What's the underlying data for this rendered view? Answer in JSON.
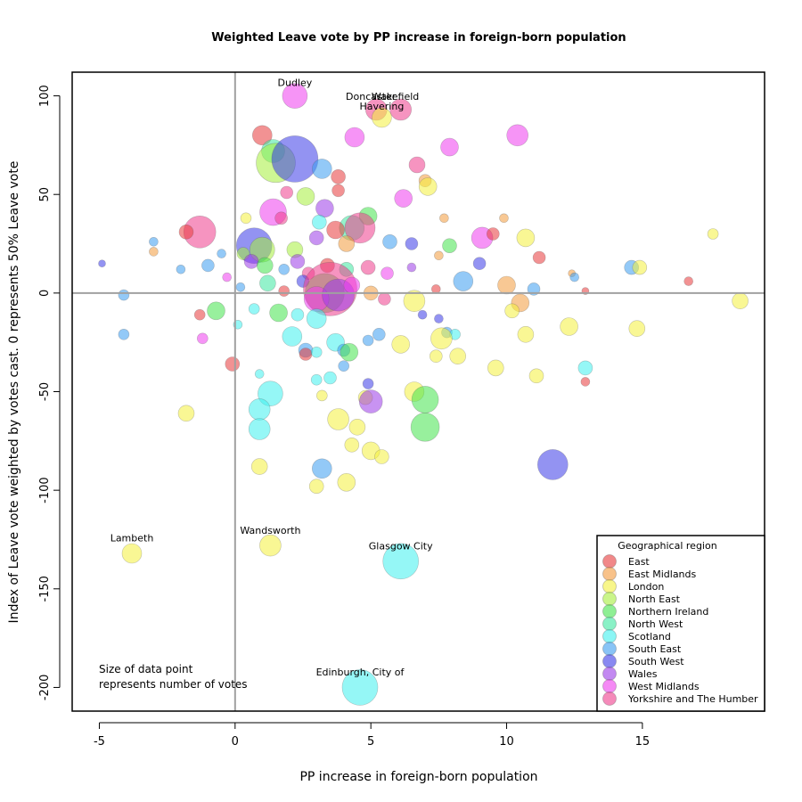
{
  "chart_data": {
    "type": "scatter",
    "title": "Weighted Leave vote by PP increase in foreign-born population",
    "xlabel": "PP increase in foreign-born population",
    "ylabel": "Index of Leave vote weighted by votes cast. 0 represents 50% Leave vote",
    "xlim": [
      -6.0,
      19.5
    ],
    "ylim": [
      -212,
      112
    ],
    "x_ticks": [
      -5,
      0,
      5,
      10,
      15
    ],
    "y_ticks": [
      -200,
      -150,
      -100,
      -50,
      0,
      50,
      100
    ],
    "reference_lines": {
      "x": 0,
      "y": 0
    },
    "note_lines": [
      "Size of data point",
      "represents number of votes"
    ],
    "legend": {
      "title": "Geographical region",
      "position": "bottom-right",
      "entries": [
        {
          "name": "East",
          "color": "#e8393a"
        },
        {
          "name": "East Midlands",
          "color": "#f39a3c"
        },
        {
          "name": "London",
          "color": "#f4f03c"
        },
        {
          "name": "North East",
          "color": "#a6ee3c"
        },
        {
          "name": "Northern Ireland",
          "color": "#44e44c"
        },
        {
          "name": "North West",
          "color": "#3ce8a0"
        },
        {
          "name": "Scotland",
          "color": "#3ef0ee"
        },
        {
          "name": "South East",
          "color": "#3a9cf0"
        },
        {
          "name": "South West",
          "color": "#3a3ae8"
        },
        {
          "name": "Wales",
          "color": "#9a3ae8"
        },
        {
          "name": "West Midlands",
          "color": "#ee3cee"
        },
        {
          "name": "Yorkshire and The Humber",
          "color": "#ee3c8c"
        }
      ]
    },
    "labels": [
      {
        "text": "Dudley",
        "x": 2.2,
        "y": 105
      },
      {
        "text": "Doncaster",
        "x": 5.0,
        "y": 98
      },
      {
        "text": "Wakefield",
        "x": 5.9,
        "y": 98
      },
      {
        "text": "Havering",
        "x": 5.4,
        "y": 93
      },
      {
        "text": "Lambeth",
        "x": -3.8,
        "y": -126
      },
      {
        "text": "Wandsworth",
        "x": 1.3,
        "y": -122
      },
      {
        "text": "Glasgow City",
        "x": 6.1,
        "y": -130
      },
      {
        "text": "Edinburgh, City of",
        "x": 4.6,
        "y": -194
      }
    ],
    "points": [
      {
        "x": 2.2,
        "y": 100,
        "s": 14,
        "r": 10
      },
      {
        "x": 5.2,
        "y": 93,
        "s": 12,
        "r": 11
      },
      {
        "x": 6.1,
        "y": 93,
        "s": 12,
        "r": 11
      },
      {
        "x": 5.4,
        "y": 89,
        "s": 11,
        "r": 2
      },
      {
        "x": 1.0,
        "y": 80,
        "s": 11,
        "r": 0
      },
      {
        "x": 4.4,
        "y": 79,
        "s": 11,
        "r": 10
      },
      {
        "x": 10.4,
        "y": 80,
        "s": 12,
        "r": 10
      },
      {
        "x": 7.9,
        "y": 74,
        "s": 10,
        "r": 10
      },
      {
        "x": 1.4,
        "y": 72,
        "s": 13,
        "r": 5
      },
      {
        "x": 1.5,
        "y": 66,
        "s": 22,
        "r": 3
      },
      {
        "x": 2.2,
        "y": 68,
        "s": 26,
        "r": 8
      },
      {
        "x": 3.2,
        "y": 63,
        "s": 11,
        "r": 7
      },
      {
        "x": 6.7,
        "y": 65,
        "s": 9,
        "r": 11
      },
      {
        "x": 3.8,
        "y": 59,
        "s": 8,
        "r": 0
      },
      {
        "x": 7.0,
        "y": 57,
        "s": 7,
        "r": 1
      },
      {
        "x": 7.1,
        "y": 54,
        "s": 10,
        "r": 2
      },
      {
        "x": 3.8,
        "y": 52,
        "s": 7,
        "r": 0
      },
      {
        "x": 1.9,
        "y": 51,
        "s": 7,
        "r": 11
      },
      {
        "x": 2.6,
        "y": 49,
        "s": 10,
        "r": 3
      },
      {
        "x": 6.2,
        "y": 48,
        "s": 10,
        "r": 10
      },
      {
        "x": 1.4,
        "y": 41,
        "s": 15,
        "r": 10
      },
      {
        "x": 3.3,
        "y": 43,
        "s": 10,
        "r": 9
      },
      {
        "x": 4.9,
        "y": 39,
        "s": 10,
        "r": 4
      },
      {
        "x": 1.7,
        "y": 38,
        "s": 7,
        "r": 11
      },
      {
        "x": 0.4,
        "y": 38,
        "s": 6,
        "r": 2
      },
      {
        "x": 7.7,
        "y": 38,
        "s": 5,
        "r": 1
      },
      {
        "x": 9.9,
        "y": 38,
        "s": 5,
        "r": 1
      },
      {
        "x": 3.1,
        "y": 36,
        "s": 8,
        "r": 6
      },
      {
        "x": 4.3,
        "y": 33,
        "s": 14,
        "r": 5
      },
      {
        "x": 4.6,
        "y": 33,
        "s": 17,
        "r": 11
      },
      {
        "x": 3.7,
        "y": 32,
        "s": 10,
        "r": 0
      },
      {
        "x": -1.3,
        "y": 31,
        "s": 18,
        "r": 11
      },
      {
        "x": -1.8,
        "y": 31,
        "s": 8,
        "r": 0
      },
      {
        "x": 0.7,
        "y": 24,
        "s": 20,
        "r": 8
      },
      {
        "x": 1.0,
        "y": 22,
        "s": 14,
        "r": 3
      },
      {
        "x": 2.2,
        "y": 22,
        "s": 9,
        "r": 3
      },
      {
        "x": 3.0,
        "y": 28,
        "s": 8,
        "r": 9
      },
      {
        "x": 4.1,
        "y": 25,
        "s": 9,
        "r": 1
      },
      {
        "x": 5.7,
        "y": 26,
        "s": 8,
        "r": 7
      },
      {
        "x": 6.5,
        "y": 25,
        "s": 7,
        "r": 8
      },
      {
        "x": 7.9,
        "y": 24,
        "s": 8,
        "r": 4
      },
      {
        "x": 9.1,
        "y": 28,
        "s": 12,
        "r": 10
      },
      {
        "x": 9.5,
        "y": 30,
        "s": 7,
        "r": 0
      },
      {
        "x": 10.7,
        "y": 28,
        "s": 10,
        "r": 2
      },
      {
        "x": 11.2,
        "y": 18,
        "s": 7,
        "r": 0
      },
      {
        "x": -3.0,
        "y": 21,
        "s": 5,
        "r": 1
      },
      {
        "x": -3.0,
        "y": 26,
        "s": 5,
        "r": 7
      },
      {
        "x": -4.9,
        "y": 15,
        "s": 4,
        "r": 8
      },
      {
        "x": -2.0,
        "y": 12,
        "s": 5,
        "r": 7
      },
      {
        "x": -1.0,
        "y": 14,
        "s": 7,
        "r": 7
      },
      {
        "x": -0.5,
        "y": 20,
        "s": 5,
        "r": 7
      },
      {
        "x": 0.3,
        "y": 20,
        "s": 7,
        "r": 3
      },
      {
        "x": 0.6,
        "y": 16,
        "s": 8,
        "r": 9
      },
      {
        "x": 1.1,
        "y": 14,
        "s": 9,
        "r": 4
      },
      {
        "x": 1.8,
        "y": 12,
        "s": 6,
        "r": 7
      },
      {
        "x": 2.3,
        "y": 16,
        "s": 8,
        "r": 9
      },
      {
        "x": 2.7,
        "y": 10,
        "s": 7,
        "r": 11
      },
      {
        "x": 3.4,
        "y": 14,
        "s": 8,
        "r": 0
      },
      {
        "x": 4.1,
        "y": 12,
        "s": 8,
        "r": 5
      },
      {
        "x": 4.9,
        "y": 13,
        "s": 8,
        "r": 11
      },
      {
        "x": 5.6,
        "y": 10,
        "s": 7,
        "r": 10
      },
      {
        "x": 6.5,
        "y": 13,
        "s": 5,
        "r": 9
      },
      {
        "x": 7.5,
        "y": 19,
        "s": 5,
        "r": 1
      },
      {
        "x": 8.4,
        "y": 6,
        "s": 11,
        "r": 7
      },
      {
        "x": 9.0,
        "y": 15,
        "s": 7,
        "r": 8
      },
      {
        "x": 10.0,
        "y": 4,
        "s": 10,
        "r": 1
      },
      {
        "x": 12.4,
        "y": 10,
        "s": 4,
        "r": 1
      },
      {
        "x": 12.5,
        "y": 8,
        "s": 5,
        "r": 7
      },
      {
        "x": 14.6,
        "y": 13,
        "s": 8,
        "r": 7
      },
      {
        "x": 14.9,
        "y": 13,
        "s": 8,
        "r": 2
      },
      {
        "x": 16.7,
        "y": 6,
        "s": 5,
        "r": 0
      },
      {
        "x": 17.6,
        "y": 30,
        "s": 6,
        "r": 2
      },
      {
        "x": 12.9,
        "y": 1,
        "s": 4,
        "r": 0
      },
      {
        "x": 11.0,
        "y": 2,
        "s": 7,
        "r": 7
      },
      {
        "x": -0.3,
        "y": 8,
        "s": 5,
        "r": 10
      },
      {
        "x": 0.2,
        "y": 3,
        "s": 5,
        "r": 7
      },
      {
        "x": 1.2,
        "y": 5,
        "s": 9,
        "r": 5
      },
      {
        "x": 1.8,
        "y": 1,
        "s": 6,
        "r": 0
      },
      {
        "x": 2.5,
        "y": 6,
        "s": 7,
        "r": 8
      },
      {
        "x": 3.3,
        "y": 0,
        "s": 22,
        "r": 4
      },
      {
        "x": 3.5,
        "y": 2,
        "s": 30,
        "r": 11
      },
      {
        "x": 3.0,
        "y": -3,
        "s": 14,
        "r": 10
      },
      {
        "x": 3.8,
        "y": -1,
        "s": 18,
        "r": 9
      },
      {
        "x": 4.3,
        "y": 4,
        "s": 9,
        "r": 10
      },
      {
        "x": 5.0,
        "y": 0,
        "s": 8,
        "r": 1
      },
      {
        "x": 5.5,
        "y": -3,
        "s": 7,
        "r": 11
      },
      {
        "x": 6.6,
        "y": -4,
        "s": 12,
        "r": 2
      },
      {
        "x": 7.4,
        "y": 2,
        "s": 5,
        "r": 0
      },
      {
        "x": 10.5,
        "y": -5,
        "s": 10,
        "r": 1
      },
      {
        "x": 10.2,
        "y": -9,
        "s": 8,
        "r": 2
      },
      {
        "x": 18.6,
        "y": -4,
        "s": 9,
        "r": 2
      },
      {
        "x": -4.1,
        "y": -1,
        "s": 6,
        "r": 7
      },
      {
        "x": -4.1,
        "y": -21,
        "s": 6,
        "r": 7
      },
      {
        "x": -1.3,
        "y": -11,
        "s": 6,
        "r": 0
      },
      {
        "x": -0.7,
        "y": -9,
        "s": 10,
        "r": 4
      },
      {
        "x": -1.2,
        "y": -23,
        "s": 6,
        "r": 10
      },
      {
        "x": 0.7,
        "y": -8,
        "s": 6,
        "r": 6
      },
      {
        "x": 1.6,
        "y": -10,
        "s": 10,
        "r": 4
      },
      {
        "x": 2.3,
        "y": -11,
        "s": 7,
        "r": 6
      },
      {
        "x": 3.0,
        "y": -13,
        "s": 11,
        "r": 6
      },
      {
        "x": 2.1,
        "y": -22,
        "s": 11,
        "r": 6
      },
      {
        "x": 2.6,
        "y": -29,
        "s": 8,
        "r": 7
      },
      {
        "x": 2.6,
        "y": -31,
        "s": 7,
        "r": 0
      },
      {
        "x": 3.7,
        "y": -25,
        "s": 10,
        "r": 6
      },
      {
        "x": 4.0,
        "y": -29,
        "s": 7,
        "r": 7
      },
      {
        "x": 4.2,
        "y": -30,
        "s": 10,
        "r": 4
      },
      {
        "x": 4.9,
        "y": -24,
        "s": 6,
        "r": 7
      },
      {
        "x": 5.3,
        "y": -21,
        "s": 7,
        "r": 7
      },
      {
        "x": 6.1,
        "y": -26,
        "s": 10,
        "r": 2
      },
      {
        "x": 6.9,
        "y": -11,
        "s": 5,
        "r": 8
      },
      {
        "x": 7.5,
        "y": -13,
        "s": 5,
        "r": 8
      },
      {
        "x": 7.8,
        "y": -20,
        "s": 6,
        "r": 7
      },
      {
        "x": 8.1,
        "y": -21,
        "s": 6,
        "r": 6
      },
      {
        "x": 7.6,
        "y": -23,
        "s": 12,
        "r": 2
      },
      {
        "x": 7.4,
        "y": -32,
        "s": 7,
        "r": 2
      },
      {
        "x": 8.2,
        "y": -32,
        "s": 9,
        "r": 2
      },
      {
        "x": 10.7,
        "y": -21,
        "s": 9,
        "r": 2
      },
      {
        "x": 12.3,
        "y": -17,
        "s": 10,
        "r": 2
      },
      {
        "x": 14.8,
        "y": -18,
        "s": 9,
        "r": 2
      },
      {
        "x": 9.6,
        "y": -38,
        "s": 9,
        "r": 2
      },
      {
        "x": 11.1,
        "y": -42,
        "s": 8,
        "r": 2
      },
      {
        "x": 12.9,
        "y": -38,
        "s": 8,
        "r": 6
      },
      {
        "x": 12.9,
        "y": -45,
        "s": 5,
        "r": 0
      },
      {
        "x": -0.1,
        "y": -36,
        "s": 8,
        "r": 0
      },
      {
        "x": 0.1,
        "y": -16,
        "s": 5,
        "r": 6
      },
      {
        "x": 0.9,
        "y": -41,
        "s": 5,
        "r": 6
      },
      {
        "x": 1.3,
        "y": -51,
        "s": 14,
        "r": 6
      },
      {
        "x": 0.9,
        "y": -59,
        "s": 12,
        "r": 6
      },
      {
        "x": 0.9,
        "y": -69,
        "s": 12,
        "r": 6
      },
      {
        "x": 0.9,
        "y": -88,
        "s": 9,
        "r": 2
      },
      {
        "x": -1.8,
        "y": -61,
        "s": 9,
        "r": 2
      },
      {
        "x": 3.0,
        "y": -30,
        "s": 6,
        "r": 6
      },
      {
        "x": 3.0,
        "y": -44,
        "s": 6,
        "r": 6
      },
      {
        "x": 3.2,
        "y": -52,
        "s": 6,
        "r": 2
      },
      {
        "x": 3.5,
        "y": -43,
        "s": 7,
        "r": 6
      },
      {
        "x": 4.0,
        "y": -37,
        "s": 6,
        "r": 7
      },
      {
        "x": 4.9,
        "y": -46,
        "s": 6,
        "r": 8
      },
      {
        "x": 4.8,
        "y": -53,
        "s": 8,
        "r": 2
      },
      {
        "x": 5.0,
        "y": -55,
        "s": 13,
        "r": 9
      },
      {
        "x": 6.6,
        "y": -50,
        "s": 11,
        "r": 2
      },
      {
        "x": 7.0,
        "y": -54,
        "s": 15,
        "r": 4
      },
      {
        "x": 7.0,
        "y": -68,
        "s": 16,
        "r": 4
      },
      {
        "x": 3.8,
        "y": -64,
        "s": 12,
        "r": 2
      },
      {
        "x": 4.5,
        "y": -68,
        "s": 9,
        "r": 2
      },
      {
        "x": 4.3,
        "y": -77,
        "s": 8,
        "r": 2
      },
      {
        "x": 5.0,
        "y": -80,
        "s": 10,
        "r": 2
      },
      {
        "x": 5.4,
        "y": -83,
        "s": 8,
        "r": 2
      },
      {
        "x": 3.2,
        "y": -89,
        "s": 11,
        "r": 7
      },
      {
        "x": 4.1,
        "y": -96,
        "s": 10,
        "r": 2
      },
      {
        "x": 3.0,
        "y": -98,
        "s": 8,
        "r": 2
      },
      {
        "x": 11.7,
        "y": -87,
        "s": 17,
        "r": 8
      },
      {
        "x": -3.8,
        "y": -132,
        "s": 11,
        "r": 2
      },
      {
        "x": 1.3,
        "y": -128,
        "s": 12,
        "r": 2
      },
      {
        "x": 6.1,
        "y": -136,
        "s": 20,
        "r": 6
      },
      {
        "x": 4.6,
        "y": -200,
        "s": 20,
        "r": 6
      }
    ]
  }
}
